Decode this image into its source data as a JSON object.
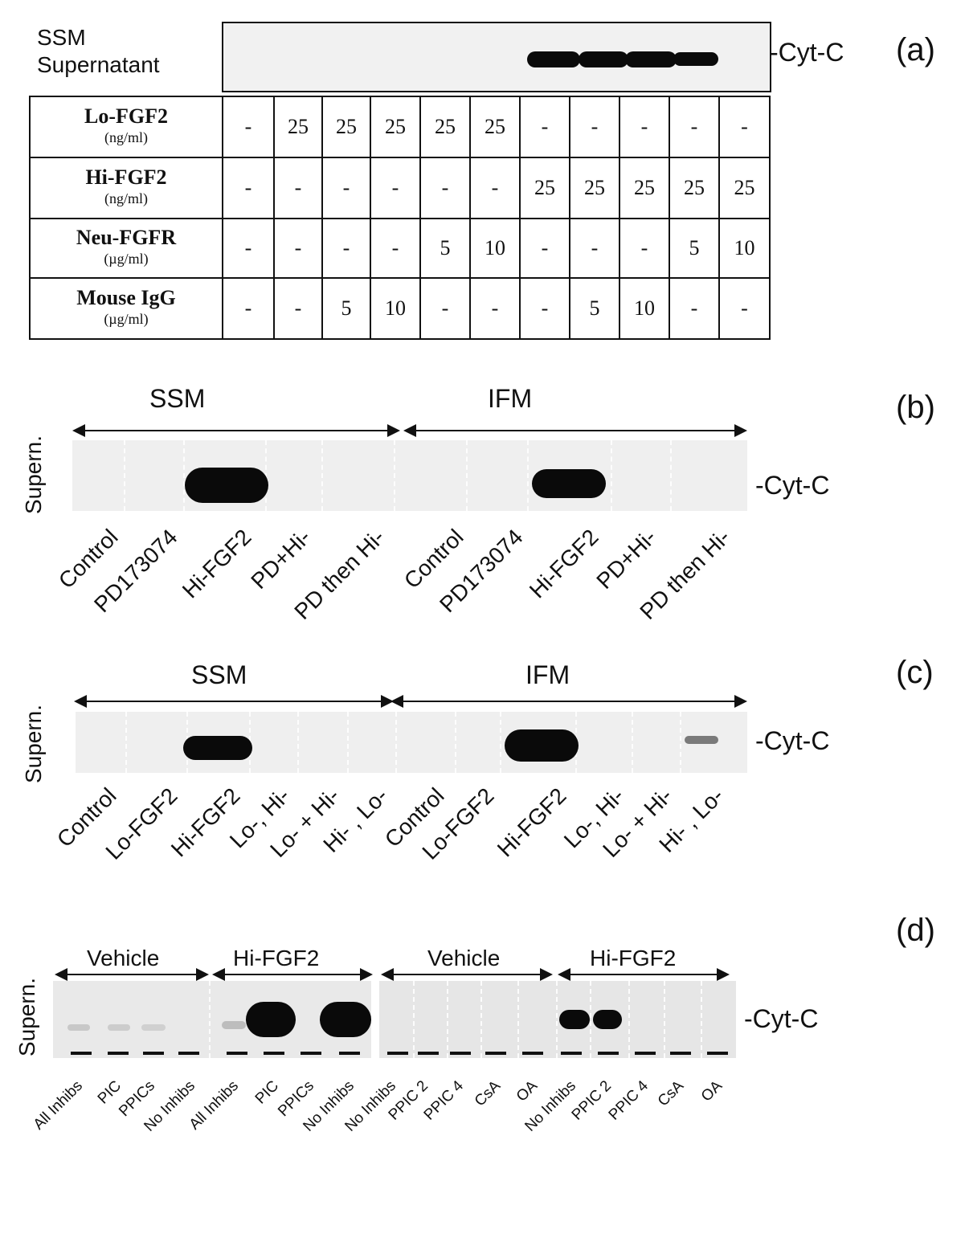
{
  "panel_a": {
    "letter": "(a)",
    "blot_label_1": "SSM",
    "blot_label_2": "Supernatant",
    "band_label": "-Cyt-C",
    "rows": [
      {
        "name": "Lo-FGF2",
        "unit": "(ng/ml)",
        "values": [
          "-",
          "25",
          "25",
          "25",
          "25",
          "25",
          "-",
          "-",
          "-",
          "-",
          "-"
        ]
      },
      {
        "name": "Hi-FGF2",
        "unit": "(ng/ml)",
        "values": [
          "-",
          "-",
          "-",
          "-",
          "-",
          "-",
          "25",
          "25",
          "25",
          "25",
          "25"
        ]
      },
      {
        "name": "Neu-FGFR",
        "unit": "(µg/ml)",
        "values": [
          "-",
          "-",
          "-",
          "-",
          "5",
          "10",
          "-",
          "-",
          "-",
          "5",
          "10"
        ]
      },
      {
        "name": "Mouse IgG",
        "unit": "(µg/ml)",
        "values": [
          "-",
          "-",
          "5",
          "10",
          "-",
          "-",
          "-",
          "5",
          "10",
          "-",
          "-"
        ]
      }
    ]
  },
  "panel_b": {
    "letter": "(b)",
    "group_left": "SSM",
    "group_right": "IFM",
    "side_label": "Supern.",
    "band_label": "-Cyt-C",
    "lanes": [
      "Control",
      "PD173074",
      "Hi-FGF2",
      "PD+Hi-",
      "PD then Hi-",
      "Control",
      "PD173074",
      "Hi-FGF2",
      "PD+Hi-",
      "PD then Hi-"
    ]
  },
  "panel_c": {
    "letter": "(c)",
    "group_left": "SSM",
    "group_right": "IFM",
    "side_label": "Supern.",
    "band_label": "-Cyt-C",
    "lanes": [
      "Control",
      "Lo-FGF2",
      "Hi-FGF2",
      "Lo-, Hi-",
      "Lo- + Hi-",
      "Hi- , Lo-",
      "Control",
      "Lo-FGF2",
      "Hi-FGF2",
      "Lo-, Hi-",
      "Lo- + Hi-",
      "Hi- , Lo-"
    ]
  },
  "panel_d": {
    "letter": "(d)",
    "side_label": "Supern.",
    "band_label": "-Cyt-C",
    "groups": [
      "Vehicle",
      "Hi-FGF2",
      "Vehicle",
      "Hi-FGF2"
    ],
    "lanes": [
      "All Inhibs",
      "PIC",
      "PPICs",
      "No Inhibs",
      "All Inhibs",
      "PIC",
      "PPICs",
      "No Inhibs",
      "No Inhibs",
      "PPIC 2",
      "PPIC 4",
      "CsA",
      "OA",
      "No Inhibs",
      "PPIC 2",
      "PPIC 4",
      "CsA",
      "OA"
    ]
  }
}
